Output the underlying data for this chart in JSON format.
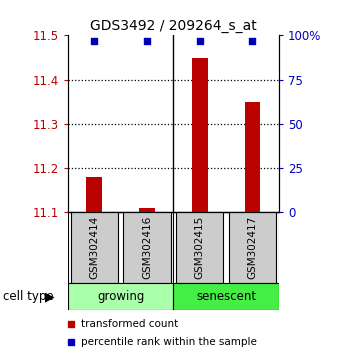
{
  "title": "GDS3492 / 209264_s_at",
  "samples": [
    "GSM302414",
    "GSM302416",
    "GSM302415",
    "GSM302417"
  ],
  "groups": [
    "growing",
    "growing",
    "senescent",
    "senescent"
  ],
  "group_colors": {
    "growing": "#aaffaa",
    "senescent": "#44ee44"
  },
  "bar_values": [
    11.18,
    11.11,
    11.45,
    11.35
  ],
  "bar_base": 11.1,
  "dot_percentile": [
    97,
    97,
    97,
    97
  ],
  "ylim_left": [
    11.1,
    11.5
  ],
  "ylim_right": [
    0,
    100
  ],
  "left_ticks": [
    11.1,
    11.2,
    11.3,
    11.4,
    11.5
  ],
  "right_ticks": [
    0,
    25,
    50,
    75,
    100
  ],
  "right_tick_labels": [
    "0",
    "25",
    "50",
    "75",
    "100%"
  ],
  "bar_color": "#bb0000",
  "dot_color": "#0000bb",
  "sample_box_color": "#cccccc",
  "cell_type_label": "cell type",
  "legend_red_label": "transformed count",
  "legend_blue_label": "percentile rank within the sample"
}
